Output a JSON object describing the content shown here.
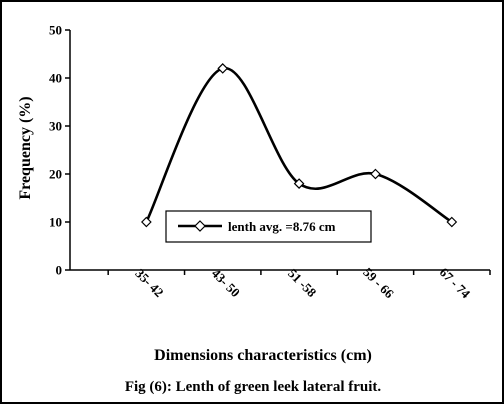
{
  "chart_data": {
    "type": "line",
    "categories": [
      "35- 42",
      "43- 50",
      "51 -58",
      "59 - 66",
      "67 - 74"
    ],
    "series": [
      {
        "name": "lenth avg. =8.76 cm",
        "values": [
          10,
          42,
          18,
          20,
          10
        ],
        "marker": "diamond",
        "color": "#000000"
      }
    ],
    "title": "Fig (6): Lenth of green leek  lateral fruit.",
    "xlabel": "Dimensions characteristics (cm)",
    "ylabel": "Frequency (%)",
    "ylim": [
      0,
      50
    ],
    "yticks": [
      0,
      10,
      20,
      30,
      40,
      50
    ],
    "grid": false,
    "legend_position": "inside-center-left",
    "smooth": true
  }
}
